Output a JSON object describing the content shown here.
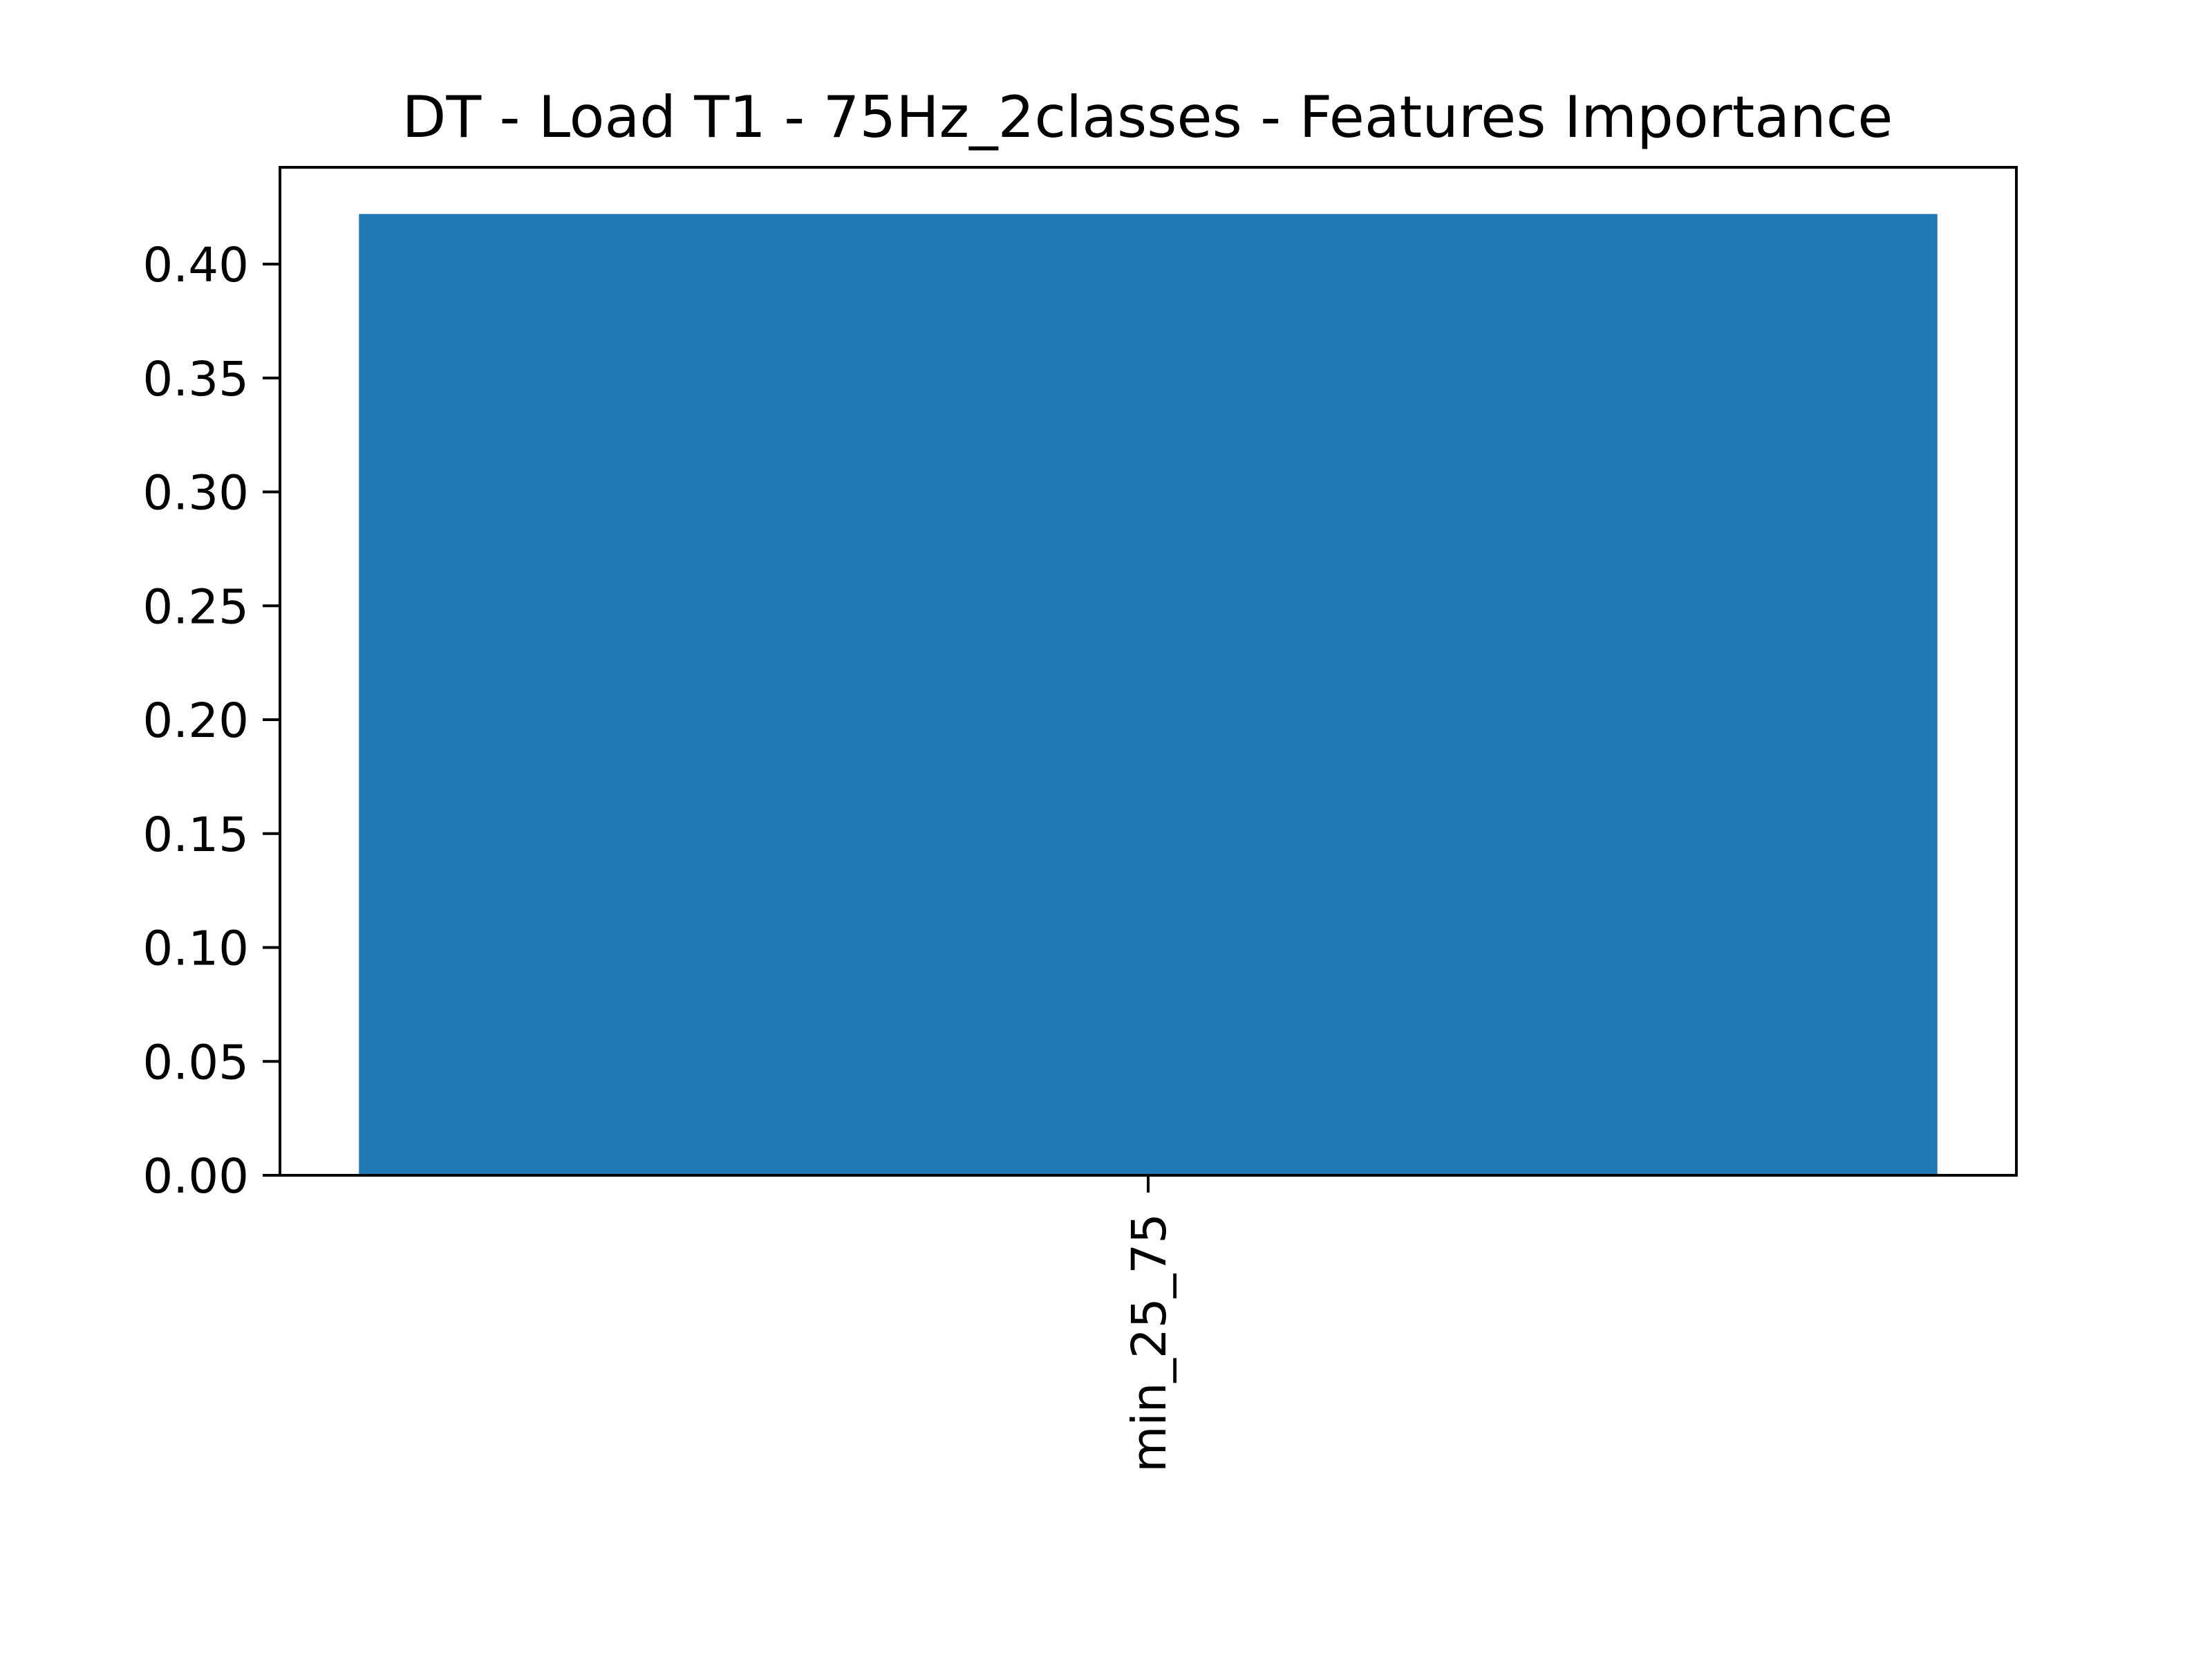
{
  "chart_data": {
    "type": "bar",
    "title": "DT - Load T1 - 75Hz_2classes - Features Importance",
    "xlabel": "",
    "ylabel": "",
    "categories": [
      "min_25_75"
    ],
    "values": [
      0.422
    ],
    "ylim": [
      0,
      0.4425
    ],
    "yticks": [
      "0.00",
      "0.05",
      "0.10",
      "0.15",
      "0.20",
      "0.25",
      "0.30",
      "0.35",
      "0.40"
    ],
    "x_tick_rotation": "vertical",
    "grid": false,
    "legend": "none",
    "bar_color": "#1f77b4"
  }
}
